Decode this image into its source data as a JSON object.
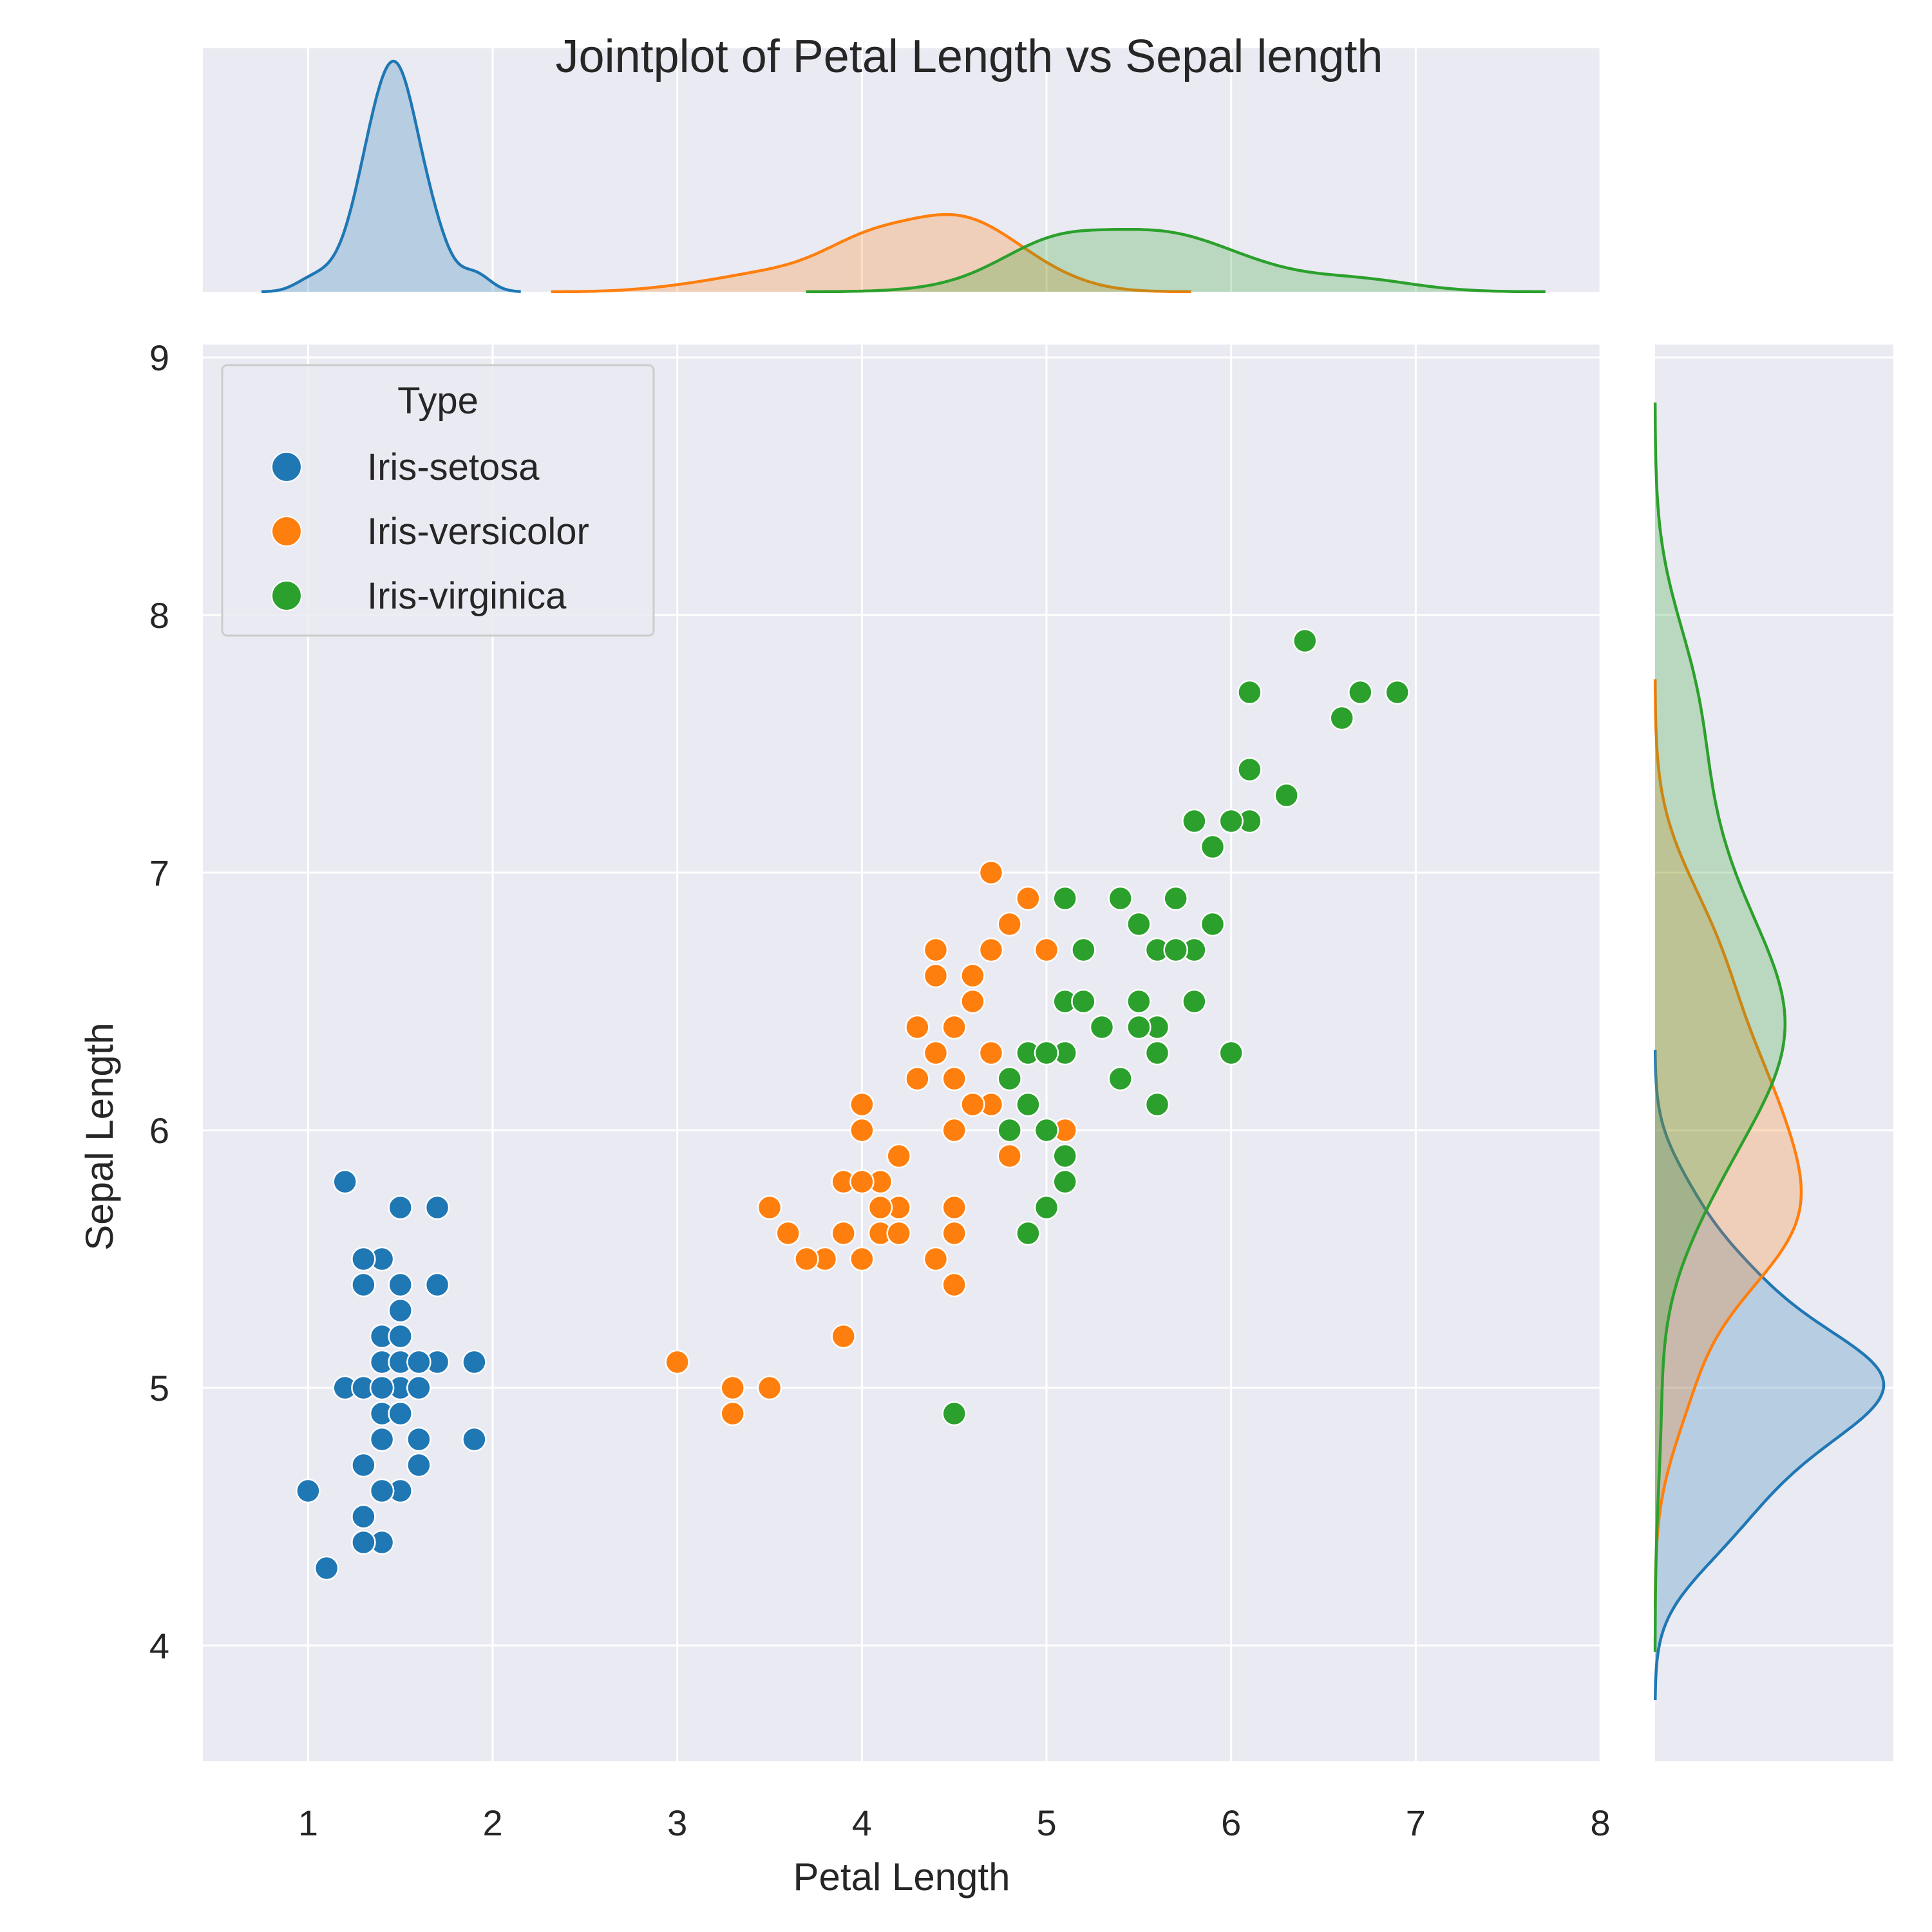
{
  "chart_data": {
    "type": "scatter",
    "title": "Jointplot of Petal Length vs Sepal length",
    "xlabel": "Petal Length",
    "ylabel": "Sepal Length",
    "xlim": [
      0.43,
      8.0
    ],
    "ylim": [
      3.55,
      9.05
    ],
    "xticks": [
      "1",
      "2",
      "3",
      "4",
      "5",
      "6",
      "7",
      "8"
    ],
    "yticks": [
      "4",
      "5",
      "6",
      "7",
      "8",
      "9"
    ],
    "grid": true,
    "legend": {
      "title": "Type",
      "placement": "top-left"
    },
    "marginals": {
      "top": "kde of Petal Length by Type",
      "right": "kde of Sepal Length by Type"
    },
    "series": [
      {
        "name": "Iris-setosa",
        "color": "#1f77b4",
        "points": [
          [
            1.4,
            5.1
          ],
          [
            1.4,
            4.9
          ],
          [
            1.3,
            4.7
          ],
          [
            1.5,
            4.6
          ],
          [
            1.4,
            5.0
          ],
          [
            1.7,
            5.4
          ],
          [
            1.4,
            4.6
          ],
          [
            1.5,
            5.0
          ],
          [
            1.4,
            4.4
          ],
          [
            1.5,
            4.9
          ],
          [
            1.5,
            5.4
          ],
          [
            1.6,
            4.8
          ],
          [
            1.4,
            4.8
          ],
          [
            1.1,
            4.3
          ],
          [
            1.2,
            5.8
          ],
          [
            1.5,
            5.7
          ],
          [
            1.3,
            5.4
          ],
          [
            1.4,
            5.1
          ],
          [
            1.7,
            5.7
          ],
          [
            1.5,
            5.1
          ],
          [
            1.7,
            5.4
          ],
          [
            1.5,
            5.1
          ],
          [
            1.0,
            4.6
          ],
          [
            1.7,
            5.1
          ],
          [
            1.9,
            4.8
          ],
          [
            1.6,
            5.0
          ],
          [
            1.6,
            5.0
          ],
          [
            1.5,
            5.2
          ],
          [
            1.4,
            5.2
          ],
          [
            1.6,
            4.7
          ],
          [
            1.6,
            4.8
          ],
          [
            1.5,
            5.4
          ],
          [
            1.5,
            5.2
          ],
          [
            1.4,
            5.5
          ],
          [
            1.5,
            4.9
          ],
          [
            1.2,
            5.0
          ],
          [
            1.3,
            5.5
          ],
          [
            1.5,
            4.9
          ],
          [
            1.3,
            4.4
          ],
          [
            1.5,
            5.1
          ],
          [
            1.3,
            5.0
          ],
          [
            1.3,
            4.5
          ],
          [
            1.3,
            4.4
          ],
          [
            1.6,
            5.0
          ],
          [
            1.9,
            5.1
          ],
          [
            1.4,
            4.8
          ],
          [
            1.6,
            5.1
          ],
          [
            1.4,
            4.6
          ],
          [
            1.5,
            5.3
          ],
          [
            1.4,
            5.0
          ]
        ]
      },
      {
        "name": "Iris-versicolor",
        "color": "#ff7f0e",
        "points": [
          [
            4.7,
            7.0
          ],
          [
            4.5,
            6.4
          ],
          [
            4.9,
            6.9
          ],
          [
            4.0,
            5.5
          ],
          [
            4.6,
            6.5
          ],
          [
            4.5,
            5.7
          ],
          [
            4.7,
            6.3
          ],
          [
            3.3,
            4.9
          ],
          [
            4.6,
            6.6
          ],
          [
            3.9,
            5.2
          ],
          [
            3.5,
            5.0
          ],
          [
            4.2,
            5.9
          ],
          [
            4.0,
            6.0
          ],
          [
            4.7,
            6.1
          ],
          [
            3.6,
            5.6
          ],
          [
            4.4,
            6.7
          ],
          [
            4.5,
            5.6
          ],
          [
            4.1,
            5.8
          ],
          [
            4.5,
            6.2
          ],
          [
            3.9,
            5.6
          ],
          [
            4.8,
            5.9
          ],
          [
            4.0,
            6.1
          ],
          [
            4.9,
            6.3
          ],
          [
            4.7,
            6.1
          ],
          [
            4.3,
            6.4
          ],
          [
            4.4,
            6.6
          ],
          [
            4.8,
            6.8
          ],
          [
            5.0,
            6.7
          ],
          [
            4.5,
            6.0
          ],
          [
            3.5,
            5.7
          ],
          [
            3.8,
            5.5
          ],
          [
            3.7,
            5.5
          ],
          [
            3.9,
            5.8
          ],
          [
            5.1,
            6.0
          ],
          [
            4.5,
            5.4
          ],
          [
            4.5,
            6.0
          ],
          [
            4.7,
            6.7
          ],
          [
            4.4,
            6.3
          ],
          [
            4.1,
            5.6
          ],
          [
            4.0,
            5.5
          ],
          [
            4.4,
            5.5
          ],
          [
            4.6,
            6.1
          ],
          [
            4.0,
            5.8
          ],
          [
            3.3,
            5.0
          ],
          [
            4.2,
            5.6
          ],
          [
            4.2,
            5.7
          ],
          [
            4.2,
            5.7
          ],
          [
            4.3,
            6.2
          ],
          [
            3.0,
            5.1
          ],
          [
            4.1,
            5.7
          ]
        ]
      },
      {
        "name": "Iris-virginica",
        "color": "#2ca02c",
        "points": [
          [
            6.0,
            6.3
          ],
          [
            5.1,
            5.8
          ],
          [
            5.9,
            7.1
          ],
          [
            5.6,
            6.3
          ],
          [
            5.8,
            6.5
          ],
          [
            6.6,
            7.6
          ],
          [
            4.5,
            4.9
          ],
          [
            6.3,
            7.3
          ],
          [
            5.8,
            6.7
          ],
          [
            6.1,
            7.2
          ],
          [
            5.1,
            6.5
          ],
          [
            5.3,
            6.4
          ],
          [
            5.5,
            6.8
          ],
          [
            5.0,
            5.7
          ],
          [
            5.1,
            5.8
          ],
          [
            5.3,
            6.4
          ],
          [
            5.5,
            6.5
          ],
          [
            6.7,
            7.7
          ],
          [
            6.9,
            7.7
          ],
          [
            5.0,
            6.0
          ],
          [
            5.7,
            6.9
          ],
          [
            4.9,
            5.6
          ],
          [
            6.7,
            7.7
          ],
          [
            4.9,
            6.3
          ],
          [
            5.7,
            6.7
          ],
          [
            6.0,
            7.2
          ],
          [
            4.8,
            6.2
          ],
          [
            4.9,
            6.1
          ],
          [
            5.6,
            6.4
          ],
          [
            5.8,
            7.2
          ],
          [
            6.1,
            7.4
          ],
          [
            6.4,
            7.9
          ],
          [
            5.6,
            6.4
          ],
          [
            5.1,
            6.3
          ],
          [
            5.6,
            6.1
          ],
          [
            6.1,
            7.7
          ],
          [
            5.6,
            6.3
          ],
          [
            5.5,
            6.4
          ],
          [
            4.8,
            6.0
          ],
          [
            5.4,
            6.9
          ],
          [
            5.6,
            6.7
          ],
          [
            5.1,
            6.9
          ],
          [
            5.1,
            5.8
          ],
          [
            5.9,
            6.8
          ],
          [
            5.7,
            6.7
          ],
          [
            5.2,
            6.7
          ],
          [
            5.0,
            6.3
          ],
          [
            5.2,
            6.5
          ],
          [
            5.4,
            6.2
          ],
          [
            5.1,
            5.9
          ]
        ]
      }
    ]
  }
}
